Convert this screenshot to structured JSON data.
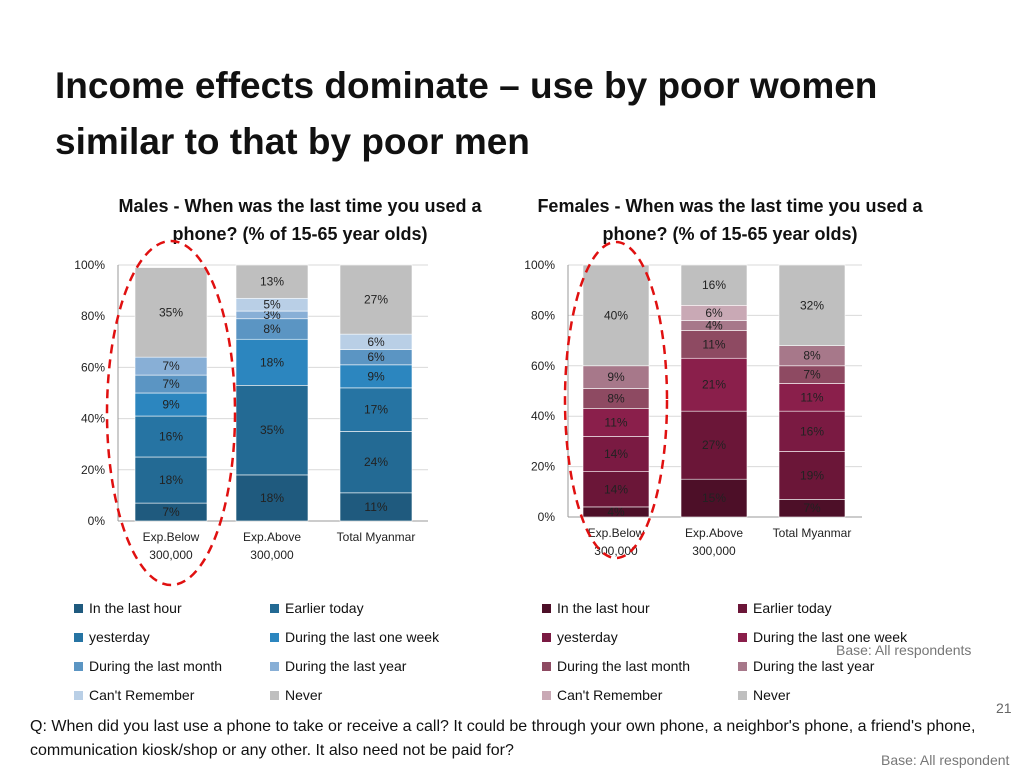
{
  "slide": {
    "title": "Income effects dominate – use by poor women similar to that by poor men",
    "page_number": "21",
    "base_note_1": "Base: All respondents",
    "base_note_2": "Base: All respondent",
    "question": "Q: When did you last use a phone to take or receive a call? It could be through your own phone, a neighbor's phone, a friend's phone, communication kiosk/shop or any other. It also need not be paid for?"
  },
  "chart_data": [
    {
      "type": "bar",
      "stacked": true,
      "title": "Males - When was the last time you used a phone? (% of 15-65 year olds)",
      "categories": [
        "Exp.Below 300,000",
        "Exp.Above 300,000",
        "Total Myanmar"
      ],
      "ylim": [
        0,
        100
      ],
      "yticks": [
        "0%",
        "20%",
        "40%",
        "60%",
        "80%",
        "100%"
      ],
      "grid": true,
      "legend_position": "bottom",
      "series": [
        {
          "name": "In the last hour",
          "color": "#1f5a7e",
          "values": [
            7,
            18,
            11
          ],
          "labels": [
            "7%",
            "18%",
            "11%"
          ]
        },
        {
          "name": "Earlier today",
          "color": "#236a94",
          "values": [
            18,
            35,
            24
          ],
          "labels": [
            "18%",
            "35%",
            "24%"
          ]
        },
        {
          "name": "yesterday",
          "color": "#2674a3",
          "values": [
            16,
            0,
            17
          ],
          "labels": [
            "16%",
            "",
            "17%"
          ]
        },
        {
          "name": "During the last one week",
          "color": "#2c86bf",
          "values": [
            9,
            18,
            9
          ],
          "labels": [
            "9%",
            "18%",
            "9%"
          ]
        },
        {
          "name": "During the last month",
          "color": "#5b95c3",
          "values": [
            7,
            8,
            6
          ],
          "labels": [
            "7%",
            "8%",
            "6%"
          ]
        },
        {
          "name": "During the last year",
          "color": "#88afd6",
          "values": [
            7,
            3,
            0
          ],
          "labels": [
            "7%",
            "3%",
            ""
          ]
        },
        {
          "name": "Can't Remember",
          "color": "#b9cfe6",
          "values": [
            0,
            5,
            6
          ],
          "labels": [
            "",
            "5%",
            "6%"
          ]
        },
        {
          "name": "Never",
          "color": "#bfbfbf",
          "values": [
            35,
            13,
            27
          ],
          "labels": [
            "35%",
            "13%",
            "27%"
          ]
        }
      ]
    },
    {
      "type": "bar",
      "stacked": true,
      "title": "Females - When was the last time you used a phone? (% of 15-65 year olds)",
      "categories": [
        "Exp.Below 300,000",
        "Exp.Above 300,000",
        "Total Myanmar"
      ],
      "ylim": [
        0,
        100
      ],
      "yticks": [
        "0%",
        "20%",
        "40%",
        "60%",
        "80%",
        "100%"
      ],
      "grid": true,
      "legend_position": "bottom",
      "series": [
        {
          "name": "In the last hour",
          "color": "#4d0f28",
          "values": [
            4,
            15,
            7
          ],
          "labels": [
            "4%",
            "15%",
            "7%"
          ]
        },
        {
          "name": "Earlier today",
          "color": "#6b1638",
          "values": [
            14,
            27,
            19
          ],
          "labels": [
            "14%",
            "27%",
            "19%"
          ]
        },
        {
          "name": "yesterday",
          "color": "#7a1a42",
          "values": [
            14,
            0,
            16
          ],
          "labels": [
            "14%",
            "",
            "16%"
          ]
        },
        {
          "name": "During the last one week",
          "color": "#8a1f4b",
          "values": [
            11,
            21,
            11
          ],
          "labels": [
            "11%",
            "21%",
            "11%"
          ]
        },
        {
          "name": "During the last month",
          "color": "#8e4a62",
          "values": [
            8,
            11,
            7
          ],
          "labels": [
            "8%",
            "11%",
            "7%"
          ]
        },
        {
          "name": "During the last year",
          "color": "#a7788a",
          "values": [
            9,
            4,
            8
          ],
          "labels": [
            "9%",
            "4%",
            "8%"
          ]
        },
        {
          "name": "Can't Remember",
          "color": "#c9a9b5",
          "values": [
            0,
            6,
            0
          ],
          "labels": [
            "",
            "6%",
            ""
          ]
        },
        {
          "name": "Never",
          "color": "#bfbfbf",
          "values": [
            40,
            16,
            32
          ],
          "labels": [
            "40%",
            "16%",
            "32%"
          ]
        }
      ]
    }
  ]
}
